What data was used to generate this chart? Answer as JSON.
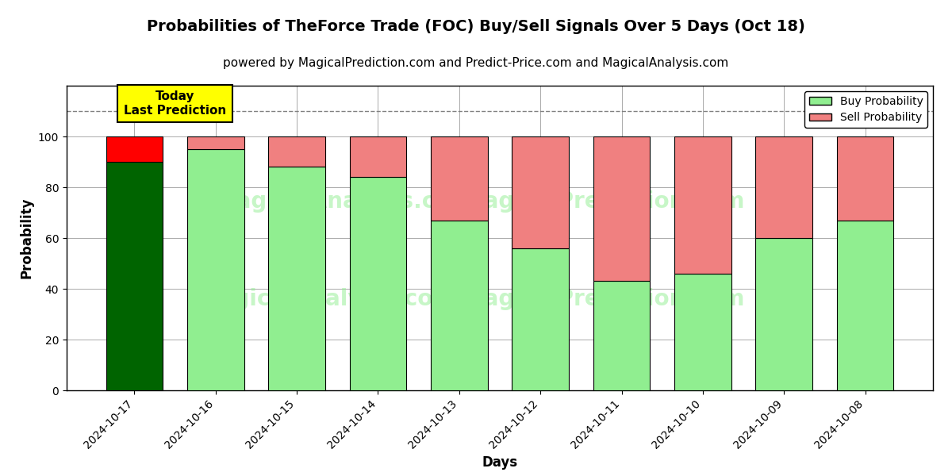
{
  "title": "Probabilities of TheForce Trade (FOC) Buy/Sell Signals Over 5 Days (Oct 18)",
  "subtitle": "powered by MagicalPrediction.com and Predict-Price.com and MagicalAnalysis.com",
  "xlabel": "Days",
  "ylabel": "Probability",
  "days": [
    "2024-10-17",
    "2024-10-16",
    "2024-10-15",
    "2024-10-14",
    "2024-10-13",
    "2024-10-12",
    "2024-10-11",
    "2024-10-10",
    "2024-10-09",
    "2024-10-08"
  ],
  "buy_probs": [
    90,
    95,
    88,
    84,
    67,
    56,
    43,
    46,
    60,
    67
  ],
  "sell_probs": [
    10,
    5,
    12,
    16,
    33,
    44,
    57,
    54,
    40,
    33
  ],
  "today_bar_buy_color": "#006400",
  "today_bar_sell_color": "#FF0000",
  "other_bar_buy_color": "#90EE90",
  "other_bar_sell_color": "#F08080",
  "bar_edge_color": "#000000",
  "today_annotation_text": "Today\nLast Prediction",
  "today_annotation_bg": "#FFFF00",
  "dashed_line_y": 110,
  "ylim": [
    0,
    120
  ],
  "yticks": [
    0,
    20,
    40,
    60,
    80,
    100
  ],
  "grid_color": "#aaaaaa",
  "legend_buy_label": "Buy Probability",
  "legend_sell_label": "Sell Probability",
  "title_fontsize": 14,
  "subtitle_fontsize": 11,
  "axis_label_fontsize": 12
}
